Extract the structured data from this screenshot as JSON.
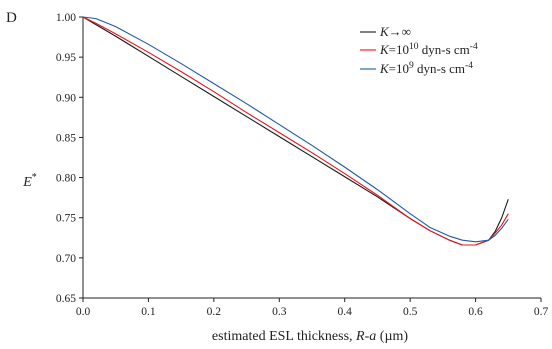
{
  "chart_data": {
    "type": "line",
    "panel_label": "D",
    "title": "",
    "xlabel_parts": [
      "estimated ESL thickness, ",
      "R-a",
      " (",
      "µ",
      "m)"
    ],
    "ylabel_parts": [
      "E",
      "*"
    ],
    "xlim": [
      0.0,
      0.7
    ],
    "ylim": [
      0.65,
      1.0
    ],
    "x_ticks": [
      0.0,
      0.1,
      0.2,
      0.3,
      0.4,
      0.5,
      0.6,
      0.7
    ],
    "x_tick_labels": [
      "0.0",
      "0.1",
      "0.2",
      "0.3",
      "0.4",
      "0.5",
      "0.6",
      "0.7"
    ],
    "y_ticks": [
      0.65,
      0.7,
      0.75,
      0.8,
      0.85,
      0.9,
      0.95,
      1.0
    ],
    "y_tick_labels": [
      "0.65",
      "0.70",
      "0.75",
      "0.80",
      "0.85",
      "0.90",
      "0.95",
      "1.00"
    ],
    "grid": false,
    "legend_position": "top-right",
    "series": [
      {
        "legend_parts": [
          "K",
          "→∞",
          "",
          ""
        ],
        "color": "#1a1a1a",
        "x": [
          0.0,
          0.05,
          0.1,
          0.15,
          0.2,
          0.25,
          0.3,
          0.35,
          0.4,
          0.45,
          0.5,
          0.53,
          0.56,
          0.58,
          0.6,
          0.62,
          0.63,
          0.64,
          0.65
        ],
        "y": [
          1.0,
          0.976,
          0.951,
          0.926,
          0.901,
          0.876,
          0.851,
          0.826,
          0.801,
          0.776,
          0.749,
          0.734,
          0.722,
          0.716,
          0.716,
          0.722,
          0.733,
          0.75,
          0.773
        ]
      },
      {
        "legend_parts": [
          "K",
          "=10",
          "10",
          " dyn-s cm",
          "-4"
        ],
        "color": "#e8141c",
        "x": [
          0.0,
          0.02,
          0.05,
          0.1,
          0.15,
          0.2,
          0.25,
          0.3,
          0.35,
          0.4,
          0.45,
          0.5,
          0.53,
          0.56,
          0.58,
          0.6,
          0.62,
          0.63,
          0.64,
          0.65
        ],
        "y": [
          1.0,
          0.992,
          0.979,
          0.956,
          0.932,
          0.907,
          0.881,
          0.856,
          0.831,
          0.805,
          0.778,
          0.749,
          0.734,
          0.722,
          0.716,
          0.716,
          0.722,
          0.731,
          0.741,
          0.755
        ]
      },
      {
        "legend_parts": [
          "K",
          "=10",
          "9",
          " dyn-s cm",
          "-4"
        ],
        "color": "#1f5aa8",
        "x": [
          0.0,
          0.02,
          0.05,
          0.1,
          0.15,
          0.2,
          0.25,
          0.3,
          0.35,
          0.4,
          0.45,
          0.5,
          0.53,
          0.56,
          0.58,
          0.6,
          0.62,
          0.63,
          0.64,
          0.65
        ],
        "y": [
          1.0,
          0.998,
          0.988,
          0.966,
          0.942,
          0.917,
          0.892,
          0.866,
          0.84,
          0.813,
          0.785,
          0.755,
          0.738,
          0.727,
          0.722,
          0.72,
          0.722,
          0.728,
          0.737,
          0.748
        ]
      }
    ]
  }
}
